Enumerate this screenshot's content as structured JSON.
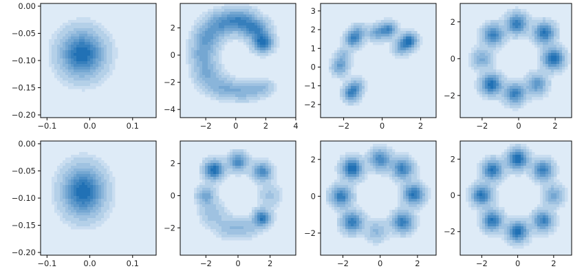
{
  "figure": {
    "grid_layout": "2x4",
    "colormap": "Blues",
    "background_color": "#deebf7",
    "density_color": "#2171b5"
  },
  "chart_data": [
    {
      "type": "heatmap",
      "name": "kde-row1-col1",
      "xlim": [
        -0.115,
        0.155
      ],
      "ylim": [
        -0.205,
        0.005
      ],
      "x_ticks": [
        -0.1,
        0.0,
        0.1
      ],
      "x_tick_labels": [
        "−0.1",
        "0.0",
        "0.1"
      ],
      "y_ticks": [
        0.0,
        -0.05,
        -0.1,
        -0.15,
        -0.2
      ],
      "y_tick_labels": [
        "0.00",
        "−0.05",
        "−0.10",
        "−0.15",
        "−0.20"
      ],
      "peaks": [
        {
          "x": -0.018,
          "y": -0.088,
          "sx": 0.034,
          "sy": 0.028,
          "w": 1.0
        }
      ]
    },
    {
      "type": "heatmap",
      "name": "kde-row1-col2",
      "xlim": [
        -3.7,
        4.0
      ],
      "ylim": [
        -4.6,
        3.8
      ],
      "x_ticks": [
        -2,
        0,
        2,
        4
      ],
      "x_tick_labels": [
        "−2",
        "0",
        "2",
        "4"
      ],
      "y_ticks": [
        2,
        0,
        -2,
        -4
      ],
      "y_tick_labels": [
        "2",
        "0",
        "−2",
        "−4"
      ],
      "peaks": [
        {
          "x": 1.8,
          "y": 0.9,
          "sx": 0.45,
          "sy": 0.45,
          "w": 1.0
        },
        {
          "x": 1.3,
          "y": 1.9,
          "sx": 0.6,
          "sy": 0.5,
          "w": 0.75
        },
        {
          "x": 0.3,
          "y": 2.6,
          "sx": 0.7,
          "sy": 0.55,
          "w": 0.7
        },
        {
          "x": -1.0,
          "y": 2.3,
          "sx": 0.7,
          "sy": 0.6,
          "w": 0.6
        },
        {
          "x": -1.9,
          "y": 1.3,
          "sx": 0.6,
          "sy": 0.6,
          "w": 0.55
        },
        {
          "x": -2.2,
          "y": 0.0,
          "sx": 0.55,
          "sy": 0.65,
          "w": 0.5
        },
        {
          "x": -1.9,
          "y": -1.4,
          "sx": 0.6,
          "sy": 0.6,
          "w": 0.45
        },
        {
          "x": -0.9,
          "y": -2.4,
          "sx": 0.7,
          "sy": 0.5,
          "w": 0.42
        },
        {
          "x": 0.5,
          "y": -2.7,
          "sx": 0.7,
          "sy": 0.45,
          "w": 0.4
        },
        {
          "x": 1.7,
          "y": -2.4,
          "sx": 0.55,
          "sy": 0.4,
          "w": 0.35
        }
      ]
    },
    {
      "type": "heatmap",
      "name": "kde-row1-col3",
      "xlim": [
        -3.2,
        2.8
      ],
      "ylim": [
        -2.7,
        3.4
      ],
      "x_ticks": [
        -2,
        0,
        2
      ],
      "x_tick_labels": [
        "−2",
        "0",
        "2"
      ],
      "y_ticks": [
        3,
        2,
        1,
        0,
        -1,
        -2
      ],
      "y_tick_labels": [
        "3",
        "2",
        "1",
        "0",
        "−1",
        "−2"
      ],
      "peaks": [
        {
          "x": 1.4,
          "y": 1.4,
          "sx": 0.28,
          "sy": 0.28,
          "w": 1.0
        },
        {
          "x": 1.0,
          "y": 1.05,
          "sx": 0.3,
          "sy": 0.3,
          "w": 0.5
        },
        {
          "x": 0.3,
          "y": 2.0,
          "sx": 0.3,
          "sy": 0.28,
          "w": 0.8
        },
        {
          "x": -0.3,
          "y": 1.8,
          "sx": 0.3,
          "sy": 0.28,
          "w": 0.5
        },
        {
          "x": -1.5,
          "y": 1.5,
          "sx": 0.28,
          "sy": 0.3,
          "w": 0.8
        },
        {
          "x": -1.2,
          "y": 1.9,
          "sx": 0.28,
          "sy": 0.28,
          "w": 0.4
        },
        {
          "x": -2.2,
          "y": 0.0,
          "sx": 0.28,
          "sy": 0.3,
          "w": 0.6
        },
        {
          "x": -2.0,
          "y": 0.6,
          "sx": 0.28,
          "sy": 0.3,
          "w": 0.35
        },
        {
          "x": -1.6,
          "y": -1.4,
          "sx": 0.28,
          "sy": 0.3,
          "w": 0.85
        },
        {
          "x": -1.3,
          "y": -1.0,
          "sx": 0.28,
          "sy": 0.28,
          "w": 0.4
        }
      ]
    },
    {
      "type": "heatmap",
      "name": "kde-row1-col4",
      "xlim": [
        -3.2,
        2.9
      ],
      "ylim": [
        -3.2,
        3.0
      ],
      "x_ticks": [
        -2,
        0,
        2
      ],
      "x_tick_labels": [
        "−2",
        "0",
        "2"
      ],
      "y_ticks": [
        2,
        0,
        -2
      ],
      "y_tick_labels": [
        "2",
        "0",
        "−2"
      ],
      "peaks": [
        {
          "x": 1.9,
          "y": 0.0,
          "sx": 0.38,
          "sy": 0.38,
          "w": 1.0
        },
        {
          "x": 1.4,
          "y": 1.4,
          "sx": 0.38,
          "sy": 0.38,
          "w": 0.9
        },
        {
          "x": -0.1,
          "y": 1.9,
          "sx": 0.38,
          "sy": 0.38,
          "w": 0.85
        },
        {
          "x": -1.4,
          "y": 1.3,
          "sx": 0.38,
          "sy": 0.38,
          "w": 0.8
        },
        {
          "x": -2.0,
          "y": 0.0,
          "sx": 0.38,
          "sy": 0.38,
          "w": 0.45
        },
        {
          "x": -1.5,
          "y": -1.4,
          "sx": 0.38,
          "sy": 0.38,
          "w": 0.95
        },
        {
          "x": -0.2,
          "y": -1.9,
          "sx": 0.38,
          "sy": 0.38,
          "w": 0.8
        },
        {
          "x": 1.0,
          "y": -1.4,
          "sx": 0.38,
          "sy": 0.38,
          "w": 0.6
        }
      ]
    },
    {
      "type": "heatmap",
      "name": "kde-row2-col1",
      "xlim": [
        -0.115,
        0.155
      ],
      "ylim": [
        -0.205,
        0.005
      ],
      "x_ticks": [
        -0.1,
        0.0,
        0.1
      ],
      "x_tick_labels": [
        "−0.1",
        "0.0",
        "0.1"
      ],
      "y_ticks": [
        0.0,
        -0.05,
        -0.1,
        -0.15,
        -0.2
      ],
      "y_tick_labels": [
        "0.00",
        "−0.05",
        "−0.10",
        "−0.15",
        "−0.20"
      ],
      "peaks": [
        {
          "x": -0.015,
          "y": -0.088,
          "sx": 0.032,
          "sy": 0.03,
          "w": 1.0
        }
      ]
    },
    {
      "type": "heatmap",
      "name": "kde-row2-col2",
      "xlim": [
        -3.6,
        3.6
      ],
      "ylim": [
        -3.7,
        3.4
      ],
      "x_ticks": [
        -2,
        0,
        2
      ],
      "x_tick_labels": [
        "−2",
        "0",
        "2"
      ],
      "y_ticks": [
        2,
        0,
        -2
      ],
      "y_tick_labels": [
        "2",
        "0",
        "−2"
      ],
      "peaks": [
        {
          "x": -1.5,
          "y": 1.6,
          "sx": 0.4,
          "sy": 0.4,
          "w": 1.0
        },
        {
          "x": 0.0,
          "y": 2.1,
          "sx": 0.4,
          "sy": 0.38,
          "w": 0.75
        },
        {
          "x": 1.5,
          "y": 1.5,
          "sx": 0.4,
          "sy": 0.38,
          "w": 0.75
        },
        {
          "x": -2.0,
          "y": 0.0,
          "sx": 0.38,
          "sy": 0.4,
          "w": 0.5
        },
        {
          "x": 1.5,
          "y": -1.4,
          "sx": 0.35,
          "sy": 0.35,
          "w": 0.9
        },
        {
          "x": -1.6,
          "y": -1.1,
          "sx": 0.5,
          "sy": 0.5,
          "w": 0.3
        },
        {
          "x": -0.5,
          "y": -2.0,
          "sx": 0.6,
          "sy": 0.45,
          "w": 0.3
        },
        {
          "x": 2.0,
          "y": 0.0,
          "sx": 0.45,
          "sy": 0.5,
          "w": 0.25
        },
        {
          "x": 0.6,
          "y": -2.0,
          "sx": 0.5,
          "sy": 0.4,
          "w": 0.25
        }
      ]
    },
    {
      "type": "heatmap",
      "name": "kde-row2-col3",
      "xlim": [
        -3.2,
        3.0
      ],
      "ylim": [
        -3.2,
        3.0
      ],
      "x_ticks": [
        -2,
        0,
        2
      ],
      "x_tick_labels": [
        "−2",
        "0",
        "2"
      ],
      "y_ticks": [
        2,
        0,
        -2
      ],
      "y_tick_labels": [
        "2",
        "0",
        "−2"
      ],
      "peaks": [
        {
          "x": -1.5,
          "y": 1.5,
          "sx": 0.38,
          "sy": 0.38,
          "w": 1.0
        },
        {
          "x": 0.0,
          "y": 2.0,
          "sx": 0.38,
          "sy": 0.38,
          "w": 0.75
        },
        {
          "x": 1.2,
          "y": 1.5,
          "sx": 0.38,
          "sy": 0.38,
          "w": 0.8
        },
        {
          "x": 1.8,
          "y": 0.1,
          "sx": 0.38,
          "sy": 0.38,
          "w": 0.9
        },
        {
          "x": -2.1,
          "y": 0.0,
          "sx": 0.38,
          "sy": 0.38,
          "w": 0.85
        },
        {
          "x": -1.5,
          "y": -1.4,
          "sx": 0.38,
          "sy": 0.38,
          "w": 0.85
        },
        {
          "x": -0.2,
          "y": -1.9,
          "sx": 0.38,
          "sy": 0.38,
          "w": 0.35
        },
        {
          "x": 1.2,
          "y": -1.4,
          "sx": 0.38,
          "sy": 0.38,
          "w": 0.85
        }
      ]
    },
    {
      "type": "heatmap",
      "name": "kde-row2-col4",
      "xlim": [
        -3.2,
        3.0
      ],
      "ylim": [
        -3.3,
        3.0
      ],
      "x_ticks": [
        -2,
        0,
        2
      ],
      "x_tick_labels": [
        "−2",
        "0",
        "2"
      ],
      "y_ticks": [
        2,
        0,
        -2
      ],
      "y_tick_labels": [
        "2",
        "0",
        "−2"
      ],
      "peaks": [
        {
          "x": 0.0,
          "y": 2.0,
          "sx": 0.38,
          "sy": 0.38,
          "w": 1.0
        },
        {
          "x": 1.4,
          "y": 1.4,
          "sx": 0.38,
          "sy": 0.38,
          "w": 0.8
        },
        {
          "x": 2.0,
          "y": 0.0,
          "sx": 0.38,
          "sy": 0.38,
          "w": 0.5
        },
        {
          "x": 1.4,
          "y": -1.4,
          "sx": 0.38,
          "sy": 0.38,
          "w": 0.8
        },
        {
          "x": 0.0,
          "y": -2.0,
          "sx": 0.38,
          "sy": 0.38,
          "w": 0.95
        },
        {
          "x": -1.4,
          "y": -1.4,
          "sx": 0.38,
          "sy": 0.38,
          "w": 0.9
        },
        {
          "x": -2.0,
          "y": 0.0,
          "sx": 0.38,
          "sy": 0.38,
          "w": 0.9
        },
        {
          "x": -1.4,
          "y": 1.4,
          "sx": 0.38,
          "sy": 0.38,
          "w": 0.9
        }
      ]
    }
  ]
}
